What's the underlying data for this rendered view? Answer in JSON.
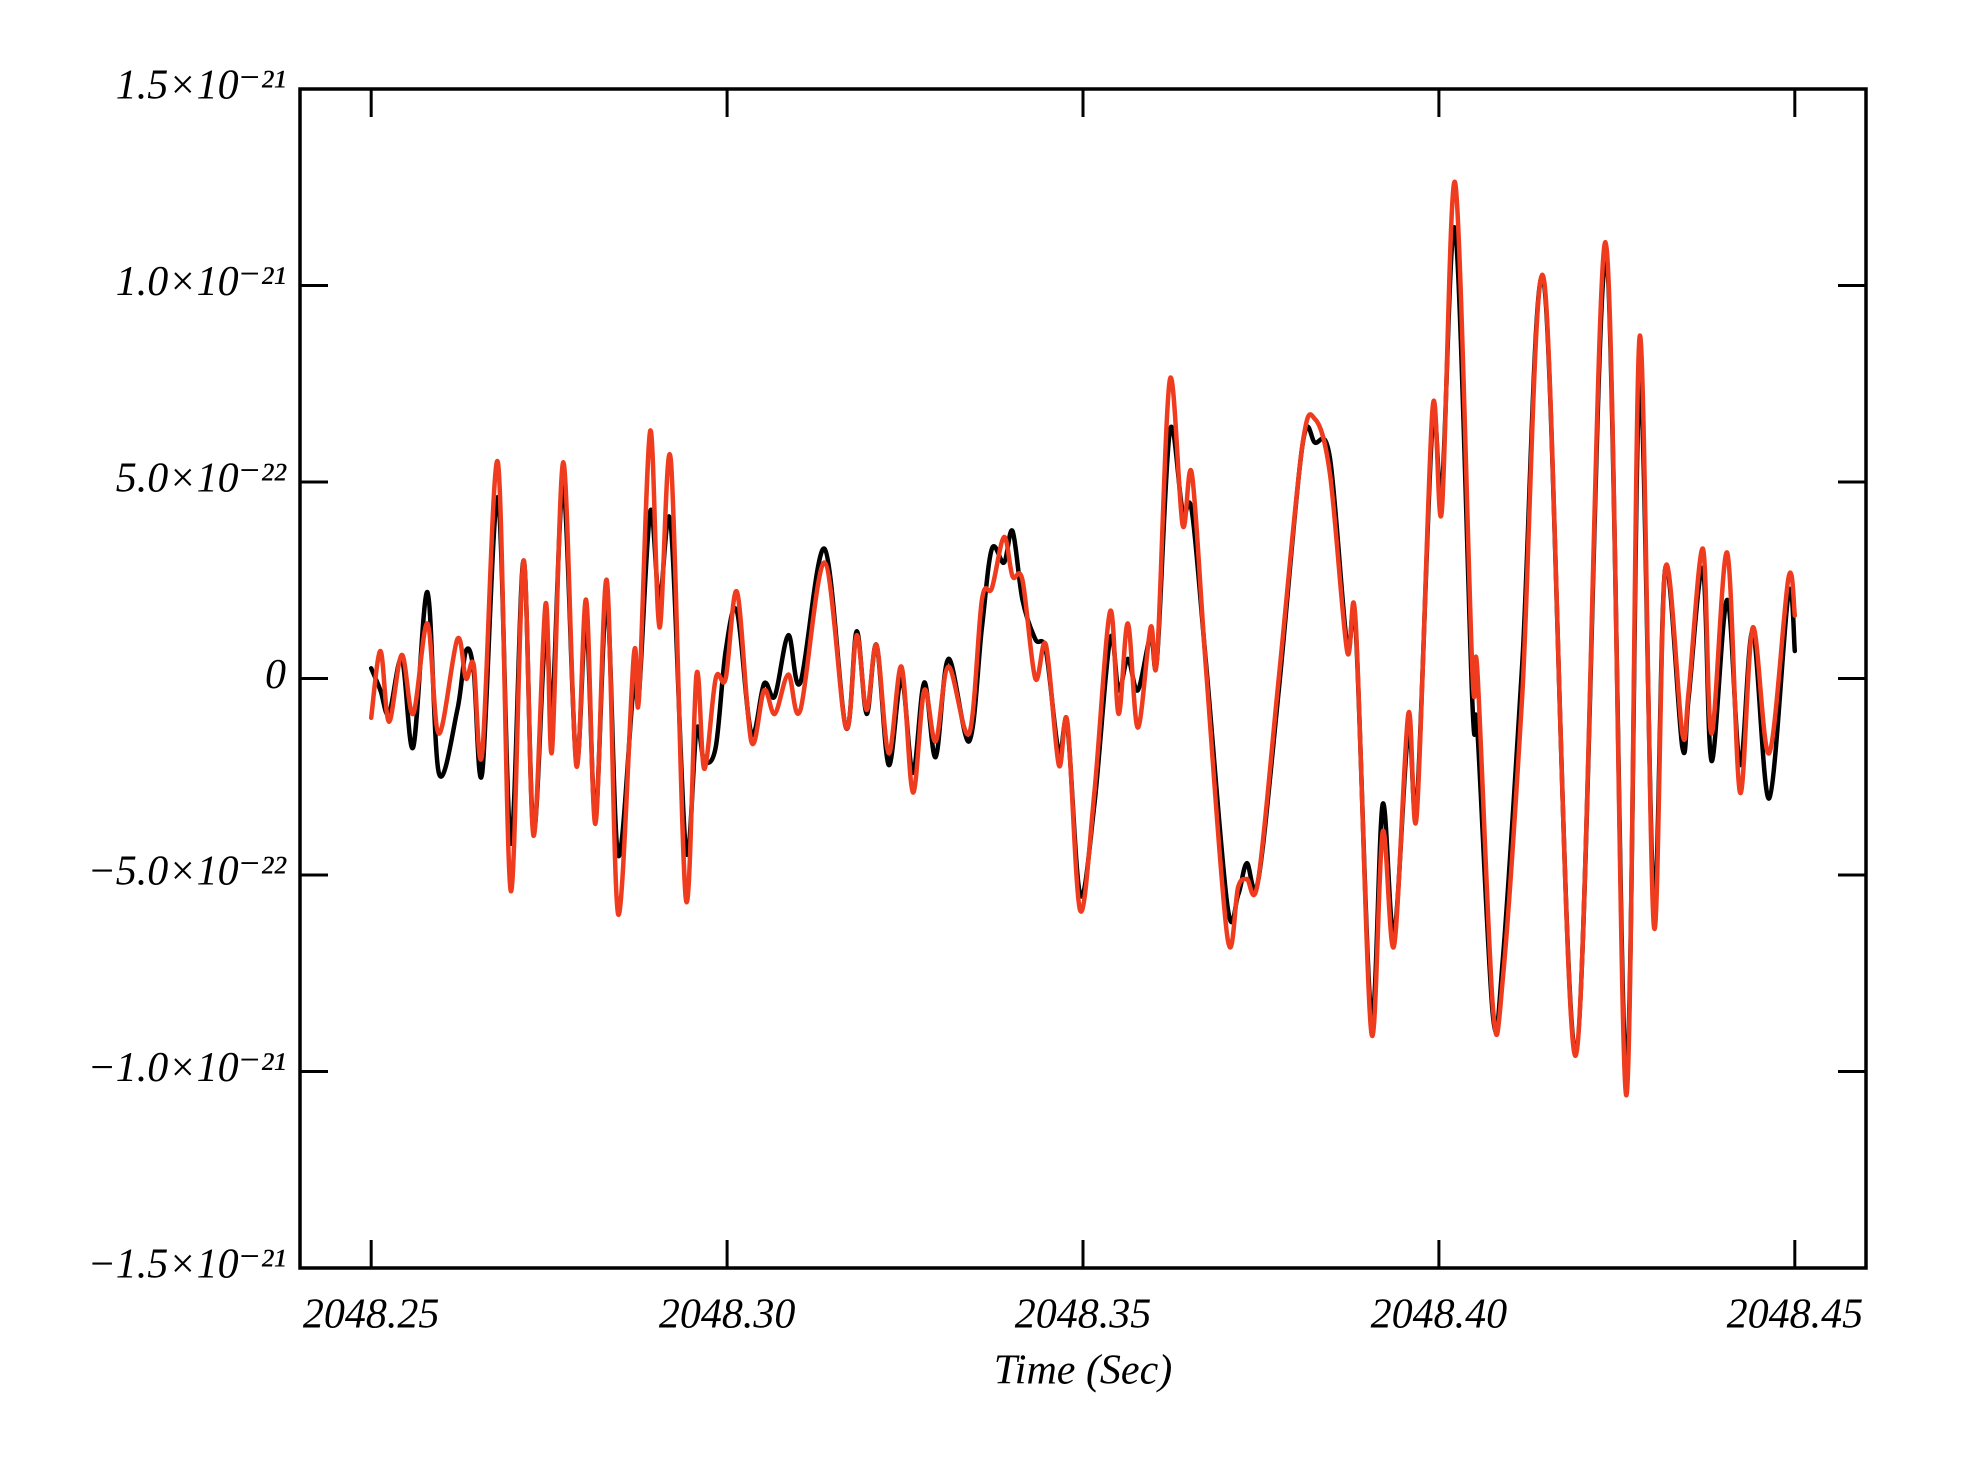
{
  "chart_data": {
    "type": "line",
    "xlabel": "Time (Sec)",
    "xlim": [
      2048.24,
      2048.46
    ],
    "ylim": [
      -1.5e-21,
      1.5e-21
    ],
    "xticks": [
      2048.25,
      {
        "value": 2048.3,
        "label": "2048.30"
      },
      2048.35,
      {
        "value": 2048.4,
        "label": "2048.40"
      },
      2048.45
    ],
    "yticks": [
      {
        "value": -1.5e-21,
        "label": "−1.5×10⁻²¹"
      },
      {
        "value": -1e-21,
        "label": "−1.0×10⁻²¹"
      },
      {
        "value": -5e-22,
        "label": "−5.0×10⁻²²"
      },
      0,
      {
        "value": 5e-22,
        "label": "5.0×10⁻²²"
      },
      {
        "value": 1e-21,
        "label": "1.0×10⁻²¹"
      },
      {
        "value": 1.5e-21,
        "label": "1.5×10⁻²¹"
      }
    ],
    "x": [
      2048.25,
      2048.2513,
      2048.2525,
      2048.2543,
      2048.2559,
      2048.2579,
      2048.2595,
      2048.2621,
      2048.2633,
      2048.2644,
      2048.2656,
      2048.2678,
      2048.2696,
      2048.2714,
      2048.2728,
      2048.2745,
      2048.2754,
      2048.277,
      2048.2788,
      2048.2802,
      2048.2815,
      2048.2831,
      2048.2847,
      2048.2869,
      2048.2876,
      2048.2892,
      2048.2905,
      2048.2921,
      2048.2942,
      2048.2957,
      2048.2968,
      2048.2984,
      2048.2998,
      2048.3014,
      2048.3034,
      2048.3052,
      2048.3067,
      2048.3086,
      2048.3103,
      2048.3137,
      2048.3167,
      2048.3182,
      2048.3196,
      2048.321,
      2048.3227,
      2048.3245,
      2048.3261,
      2048.3277,
      2048.3293,
      2048.3311,
      2048.334,
      2048.3358,
      2048.3372,
      2048.3389,
      2048.3401,
      2048.3415,
      2048.3433,
      2048.3448,
      2048.3466,
      2048.3478,
      2048.3496,
      2048.3516,
      2048.3538,
      2048.355,
      2048.3563,
      2048.3577,
      2048.3595,
      2048.3604,
      2048.3622,
      2048.364,
      2048.3653,
      2048.3673,
      2048.3703,
      2048.3718,
      2048.373,
      2048.3746,
      2048.3775,
      2048.3808,
      2048.3826,
      2048.3847,
      2048.3871,
      2048.3883,
      2048.3905,
      2048.3921,
      2048.3937,
      2048.3957,
      2048.3969,
      2048.3991,
      2048.4004,
      2048.4023,
      2048.4047,
      2048.4054,
      2048.4076,
      2048.409,
      2048.4117,
      2048.4148,
      2048.4192,
      2048.4234,
      2048.4263,
      2048.4282,
      2048.4302,
      2048.4318,
      2048.4342,
      2048.4351,
      2048.4371,
      2048.4383,
      2048.4405,
      2048.4423,
      2048.4441,
      2048.4464,
      2048.4491,
      2048.45
    ],
    "series": [
      {
        "color": "#000000",
        "values": [
          2.6e-23,
          -3e-23,
          -9e-23,
          5e-23,
          -1.75e-22,
          2.2e-22,
          -2.4e-22,
          -8e-23,
          7e-23,
          2e-23,
          -2.4e-22,
          4.6e-22,
          -4.2e-22,
          3e-22,
          -3.9e-22,
          1.3e-22,
          -9e-23,
          4.9e-22,
          -2.1e-22,
          1.5e-22,
          -3.5e-22,
          2e-22,
          -4.5e-22,
          -1e-23,
          -4.5e-23,
          4.25e-22,
          2e-22,
          3.9e-22,
          -4.35e-22,
          -1.3e-22,
          -2.1e-22,
          -1.75e-22,
          7e-23,
          1.7e-22,
          -1.4e-22,
          -1.3e-23,
          -4.5e-23,
          1.1e-22,
          -1e-23,
          3.3e-22,
          -1.25e-22,
          1.2e-22,
          -9e-23,
          8.5e-23,
          -2.2e-22,
          0.0,
          -2.4e-22,
          -1e-23,
          -2e-22,
          5e-23,
          -1.6e-22,
          1.3e-22,
          3.3e-22,
          2.95e-22,
          3.75e-22,
          2e-22,
          1e-22,
          7e-23,
          -1.9e-22,
          -1.2e-22,
          -5.5e-22,
          -3.2e-22,
          1e-22,
          -3e-23,
          5e-23,
          -3e-23,
          1.1e-22,
          5e-23,
          6.3e-22,
          4.25e-22,
          4.25e-22,
          3.5e-23,
          -5.8e-22,
          -5.5e-22,
          -4.7e-22,
          -5.15e-22,
          -3e-23,
          5.9e-22,
          6e-22,
          5.6e-22,
          8.5e-23,
          1.3e-22,
          -8.6e-22,
          -3.2e-22,
          -6.5e-22,
          -1.3e-22,
          -3.2e-22,
          6.5e-22,
          4.75e-22,
          1.14e-21,
          -6e-23,
          -1.3e-22,
          -8.6e-22,
          -7.1e-22,
          3.5e-23,
          1e-21,
          -9.5e-22,
          1.06e-21,
          -1e-21,
          7.5e-22,
          -5.65e-22,
          2.8e-22,
          -1.75e-22,
          -4.5e-23,
          2.8e-22,
          -2.1e-22,
          2e-22,
          -2.2e-22,
          1.2e-22,
          -3.05e-22,
          2.15e-22,
          7e-23
        ]
      },
      {
        "color": "#f03c1e",
        "values": [
          -1e-22,
          7e-23,
          -1.1e-22,
          6e-23,
          -9e-23,
          1.4e-22,
          -1.4e-22,
          1e-22,
          0.0,
          3.5e-23,
          -1.9e-22,
          5.5e-22,
          -5.4e-22,
          3e-22,
          -4e-22,
          1.9e-22,
          -1.85e-22,
          5.5e-22,
          -2.2e-22,
          2e-22,
          -3.7e-22,
          2.5e-22,
          -6e-22,
          6e-23,
          -5.5e-23,
          6.3e-22,
          1.3e-22,
          5.55e-22,
          -5.6e-22,
          1e-23,
          -2.3e-22,
          0.0,
          0.0,
          2.2e-22,
          -1.6e-22,
          -3e-23,
          -9e-23,
          1e-23,
          -8e-23,
          2.95e-22,
          -1.25e-22,
          1.1e-22,
          -8e-23,
          8.5e-23,
          -1.9e-22,
          3e-23,
          -2.9e-22,
          -3e-23,
          -1.6e-22,
          3e-23,
          -1.4e-22,
          2e-22,
          2.3e-22,
          3.6e-22,
          2.6e-22,
          2.5e-22,
          0.0,
          8.5e-23,
          -2.2e-22,
          -1.1e-22,
          -5.9e-22,
          -2.9e-22,
          1.7e-22,
          -9e-23,
          1.4e-22,
          -1.25e-22,
          1.3e-22,
          5e-23,
          7.6e-22,
          3.9e-22,
          5.2e-22,
          2e-23,
          -6.6e-22,
          -5.3e-22,
          -5.1e-22,
          -5.15e-22,
          0.0,
          5.9e-22,
          6.6e-22,
          5.2e-22,
          7e-23,
          1.45e-22,
          -9e-22,
          -3.9e-22,
          -6.8e-22,
          -9e-23,
          -3.45e-22,
          6.85e-22,
          4.25e-22,
          1.26e-21,
          2e-23,
          2e-23,
          -8.4e-22,
          -7.6e-22,
          -4.5e-23,
          1.01e-21,
          -9.6e-22,
          1.11e-21,
          -1.06e-21,
          8.7e-22,
          -6.3e-22,
          2.8e-22,
          -1.4e-22,
          -3e-23,
          3.3e-22,
          -1.4e-22,
          3.2e-22,
          -2.9e-22,
          1.3e-22,
          -1.9e-22,
          2.55e-22,
          1.6e-22
        ]
      }
    ]
  }
}
